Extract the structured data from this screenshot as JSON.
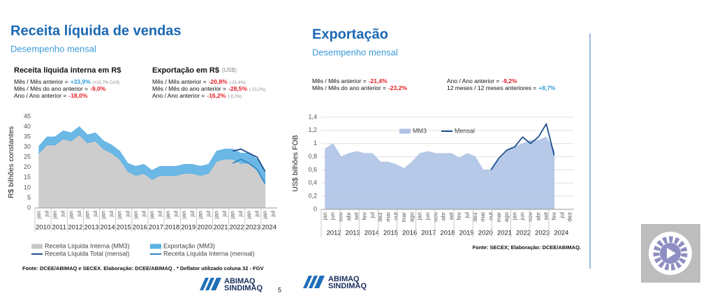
{
  "left": {
    "title": "Receita líquida de vendas",
    "subtitle": "Desempenho mensal",
    "blocks": [
      {
        "heading": "Receita líquida interna em R$",
        "rows": [
          {
            "label": "Mês / Mês anterior =",
            "value": "+33,9%",
            "note": "(+22,7% CAS)"
          },
          {
            "label": "Mês / Mês do ano anterior =",
            "value": "-9,0%"
          },
          {
            "label": "Ano / Ano anterior =",
            "value": "-18,0%"
          }
        ]
      },
      {
        "heading": "Exportação em R$",
        "heading_note": "(US$)",
        "rows": [
          {
            "label": "Mês / Mês anterior =",
            "value": "-20,8%",
            "note": "(-21,4%)"
          },
          {
            "label": "Mês / Mês do ano anterior =",
            "value": "-28,5%",
            "note": "(-23,2%)"
          },
          {
            "label": "Ano / Ano anterior =",
            "value": "-16,2%",
            "note": "(-9,2%)"
          }
        ]
      }
    ],
    "source": "Fonte: DCEE/ABIMAQ e SECEX. Elaboração: DCEE/ABIMAQ . * Deflator utilizado coluna 32 - FGV",
    "logo": [
      "ABIMAQ",
      "SINDIMAQ"
    ]
  },
  "right": {
    "title": "Exportação",
    "subtitle": "Desempenho mensal",
    "blocks": [
      {
        "rows": [
          {
            "label": "Mês / Mês anterior =",
            "value": "-21,4%"
          },
          {
            "label": "Mês / Mês do ano anterior =",
            "value": "-23,2%"
          }
        ]
      },
      {
        "rows": [
          {
            "label": "Ano / Ano anterior =",
            "value": "-9,2%"
          },
          {
            "label": "12 meses / 12 meses anteriores =",
            "value": "+8,7%"
          }
        ]
      }
    ],
    "source": "Fonte: SECEX; Elaboração: DCEE/ABIMAQ.",
    "logo": [
      "ABIMAQ",
      "SINDIMAQ"
    ]
  },
  "page_number": "5",
  "chart_data": [
    {
      "type": "area",
      "y_label": "R$ bilhões constantes",
      "categories": [
        "jan",
        "jul",
        "jan",
        "jul",
        "jan",
        "jul",
        "jan",
        "jul",
        "jan",
        "jul",
        "jan",
        "jul",
        "jan",
        "jul",
        "jan",
        "jul",
        "jan",
        "jul",
        "jan",
        "jul",
        "jan",
        "jul",
        "jan",
        "jul",
        "jan",
        "jul",
        "jan",
        "jul",
        "jan",
        "jul"
      ],
      "year_labels": [
        "2010",
        "2011",
        "2012",
        "2013",
        "2014",
        "2015",
        "2016",
        "2017",
        "2018",
        "2019",
        "2020",
        "2021",
        "2022",
        "2023",
        "2024"
      ],
      "ylim": [
        0,
        45
      ],
      "yticks": [
        0,
        5,
        10,
        15,
        20,
        25,
        30,
        35,
        40,
        45
      ],
      "grid": false,
      "legend": "bottom",
      "series": [
        {
          "name": "Receita Líquida Interna (MM3)",
          "kind": "area",
          "color": "#c8c8c8",
          "values": [
            27,
            31,
            31,
            34,
            33,
            36,
            32,
            33,
            29,
            27,
            24,
            18,
            16,
            17,
            14,
            16,
            16,
            16,
            17,
            17,
            16,
            17,
            23,
            24,
            24,
            22,
            22,
            19,
            13,
            null
          ]
        },
        {
          "name": "Exportação (MM3)",
          "kind": "area",
          "stacked": true,
          "color": "#5bb0e3",
          "values": [
            3.5,
            4,
            4,
            4,
            4,
            4,
            4,
            4,
            4,
            4,
            4,
            4,
            4.5,
            4.5,
            4.5,
            4.5,
            4.5,
            4.5,
            4.5,
            4.5,
            4.5,
            4.5,
            5,
            5,
            5,
            5,
            5,
            5,
            5,
            null
          ]
        },
        {
          "name": "Receita Líquida Total (mensal)",
          "kind": "line",
          "color": "#1f4e8c",
          "values": [
            null,
            null,
            null,
            null,
            null,
            null,
            null,
            null,
            null,
            null,
            null,
            null,
            null,
            null,
            null,
            null,
            null,
            null,
            null,
            null,
            null,
            null,
            null,
            null,
            28,
            29,
            27,
            25,
            18,
            null
          ]
        },
        {
          "name": "Receita Líquida Interna (mensal)",
          "kind": "line",
          "color": "#2e86c8",
          "values": [
            null,
            null,
            null,
            null,
            null,
            null,
            null,
            null,
            null,
            null,
            null,
            null,
            null,
            null,
            null,
            null,
            null,
            null,
            null,
            null,
            null,
            null,
            null,
            null,
            22,
            24,
            22,
            19,
            12,
            null
          ]
        }
      ]
    },
    {
      "type": "area",
      "y_label": "US$ bilhões FOB",
      "categories": [
        "jan",
        "jun",
        "nov",
        "abr",
        "set",
        "fev",
        "jul",
        "dez",
        "mai",
        "out",
        "mar",
        "ago",
        "jan",
        "jun",
        "nov",
        "abr",
        "set",
        "fev",
        "jul",
        "dez",
        "mai",
        "out",
        "mar",
        "ago",
        "jan",
        "jun",
        "nov",
        "abr",
        "set",
        "fev",
        "jul",
        "dez"
      ],
      "year_labels": [
        "2012",
        "2013",
        "2014",
        "2015",
        "2016",
        "2017",
        "2018",
        "2019",
        "2020",
        "2021",
        "2022",
        "2023",
        "2024"
      ],
      "ylim": [
        0,
        1.4
      ],
      "yticks": [
        0,
        {
          "value": 0.2,
          "label": "0,2"
        },
        {
          "value": 0.4,
          "label": "0,4"
        },
        {
          "value": 0.6,
          "label": "0,6"
        },
        {
          "value": 0.8,
          "label": "0,8"
        },
        1,
        {
          "value": 1.2,
          "label": "1,2"
        },
        {
          "value": 1.4,
          "label": "1,4"
        }
      ],
      "grid": true,
      "legend": "top",
      "series": [
        {
          "name": "MM3",
          "kind": "area",
          "color": "#aec3e6",
          "values": [
            0.92,
            1.0,
            0.8,
            0.85,
            0.88,
            0.85,
            0.85,
            0.72,
            0.72,
            0.68,
            0.62,
            0.72,
            0.85,
            0.88,
            0.85,
            0.85,
            0.85,
            0.78,
            0.85,
            0.8,
            0.6,
            0.6,
            0.75,
            0.88,
            0.95,
            1.0,
            1.05,
            1.05,
            1.1,
            0.9,
            null,
            null
          ]
        },
        {
          "name": "Mensal",
          "kind": "line",
          "color": "#1d4e8f",
          "values": [
            null,
            null,
            null,
            null,
            null,
            null,
            null,
            null,
            null,
            null,
            null,
            null,
            null,
            null,
            null,
            null,
            null,
            null,
            null,
            null,
            null,
            0.6,
            0.78,
            0.9,
            0.95,
            1.1,
            1.0,
            1.1,
            1.3,
            0.82,
            null,
            null
          ]
        }
      ]
    }
  ]
}
